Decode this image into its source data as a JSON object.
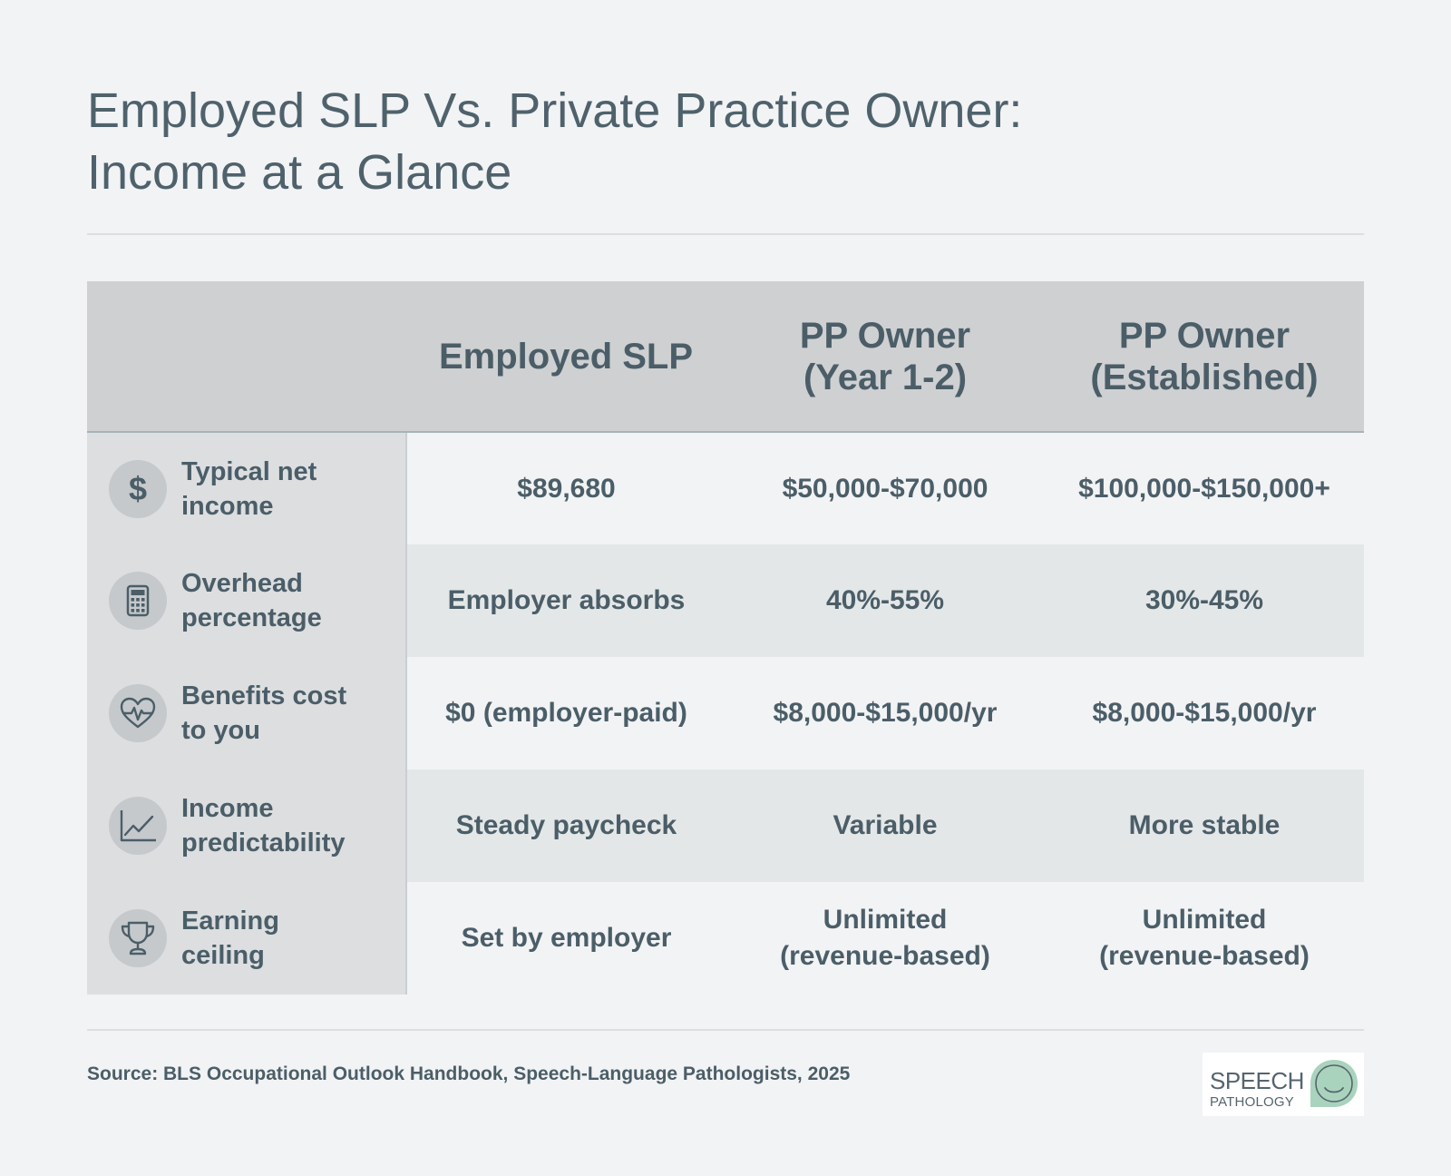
{
  "title": {
    "line1": "Employed SLP Vs. Private Practice Owner:",
    "line2": "Income at a Glance"
  },
  "chart_data": {
    "type": "table",
    "columns": [
      {
        "lines": [
          ""
        ]
      },
      {
        "lines": [
          "Employed SLP"
        ]
      },
      {
        "lines": [
          "PP Owner",
          "(Year 1-2)"
        ]
      },
      {
        "lines": [
          "PP Owner",
          "(Established)"
        ]
      }
    ],
    "rows": [
      {
        "icon": "dollar-icon",
        "label_lines": [
          "Typical net",
          "income"
        ],
        "cells": [
          [
            "$89,680"
          ],
          [
            "$50,000-$70,000"
          ],
          [
            "$100,000-$150,000+"
          ]
        ]
      },
      {
        "icon": "calculator-icon",
        "label_lines": [
          "Overhead",
          "percentage"
        ],
        "cells": [
          [
            "Employer absorbs"
          ],
          [
            "40%-55%"
          ],
          [
            "30%-45%"
          ]
        ]
      },
      {
        "icon": "heart-pulse-icon",
        "label_lines": [
          "Benefits cost",
          "to you"
        ],
        "cells": [
          [
            "$0 (employer-paid)"
          ],
          [
            "$8,000-$15,000/yr"
          ],
          [
            "$8,000-$15,000/yr"
          ]
        ]
      },
      {
        "icon": "line-chart-icon",
        "label_lines": [
          "Income",
          "predictability"
        ],
        "cells": [
          [
            "Steady paycheck"
          ],
          [
            "Variable"
          ],
          [
            "More stable"
          ]
        ]
      },
      {
        "icon": "trophy-icon",
        "label_lines": [
          "Earning",
          "ceiling"
        ],
        "cells": [
          [
            "Set by employer"
          ],
          [
            "Unlimited",
            "(revenue-based)"
          ],
          [
            "Unlimited",
            "(revenue-based)"
          ]
        ]
      }
    ]
  },
  "source": "Source: BLS Occupational Outlook Handbook, Speech-Language Pathologists, 2025",
  "logo": {
    "word1": "SPEECH",
    "word2": "PATHOLOGY"
  },
  "colors": {
    "text": "#4b5e68",
    "header_bg": "#cfd0d2",
    "row_alt_bg": "#e4e7e8",
    "row_head_bg": "#dcdee0",
    "logo_accent": "#a9d3bd"
  }
}
